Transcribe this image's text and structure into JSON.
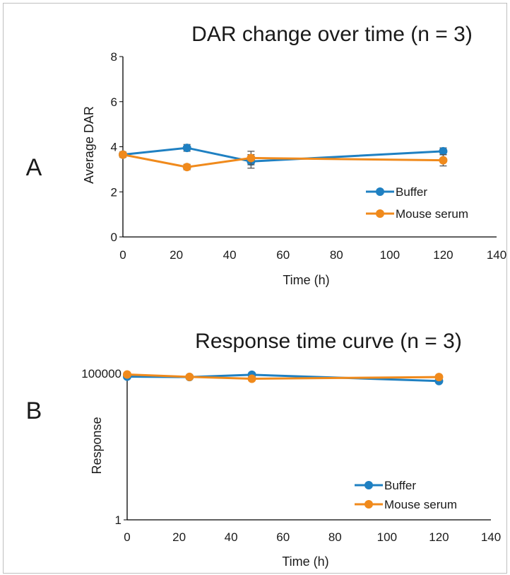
{
  "panels": {
    "a_label": "A",
    "b_label": "B"
  },
  "colors": {
    "buffer": "#1f80c2",
    "mouse_serum": "#f08a1c",
    "axis": "#000000",
    "error_bar": "#555555",
    "border": "#bfbfbf"
  },
  "chart_data": [
    {
      "type": "line",
      "title": "DAR change over time (n = 3)",
      "xlabel": "Time (h)",
      "ylabel": "Average DAR",
      "xlim": [
        0,
        140
      ],
      "ylim": [
        0,
        8
      ],
      "x_ticks": [
        "0",
        "20",
        "40",
        "60",
        "80",
        "100",
        "120",
        "140"
      ],
      "y_ticks": [
        "0",
        "2",
        "4",
        "6",
        "8"
      ],
      "grid": false,
      "legend_position": "bottom-right",
      "series": [
        {
          "name": "Buffer",
          "color": "#1f80c2",
          "x": [
            0,
            24,
            48,
            120
          ],
          "y": [
            3.65,
            3.95,
            3.35,
            3.8
          ],
          "err": [
            0.1,
            0.15,
            0.3,
            0.15
          ]
        },
        {
          "name": "Mouse serum",
          "color": "#f08a1c",
          "x": [
            0,
            24,
            48,
            120
          ],
          "y": [
            3.65,
            3.1,
            3.5,
            3.4
          ],
          "err": [
            0.12,
            0.12,
            0.3,
            0.25
          ]
        }
      ]
    },
    {
      "type": "line",
      "title": "Response time curve (n = 3)",
      "xlabel": "Time (h)",
      "ylabel": "Response",
      "xlim": [
        0,
        140
      ],
      "ylim": [
        1,
        100000
      ],
      "yscale": "log",
      "x_ticks": [
        "0",
        "20",
        "40",
        "60",
        "80",
        "100",
        "120",
        "140"
      ],
      "y_ticks": [
        "1",
        "100000"
      ],
      "grid": false,
      "legend_position": "bottom-right",
      "series": [
        {
          "name": "Buffer",
          "color": "#1f80c2",
          "x": [
            0,
            24,
            48,
            120
          ],
          "y": [
            78000,
            75000,
            90000,
            55000
          ],
          "err": [
            0.03,
            0.03,
            0.03,
            0.05
          ]
        },
        {
          "name": "Mouse serum",
          "color": "#f08a1c",
          "x": [
            0,
            24,
            48,
            120
          ],
          "y": [
            92000,
            76000,
            66000,
            75000
          ],
          "err": [
            0.03,
            0.03,
            0.03,
            0.03
          ]
        }
      ]
    }
  ]
}
